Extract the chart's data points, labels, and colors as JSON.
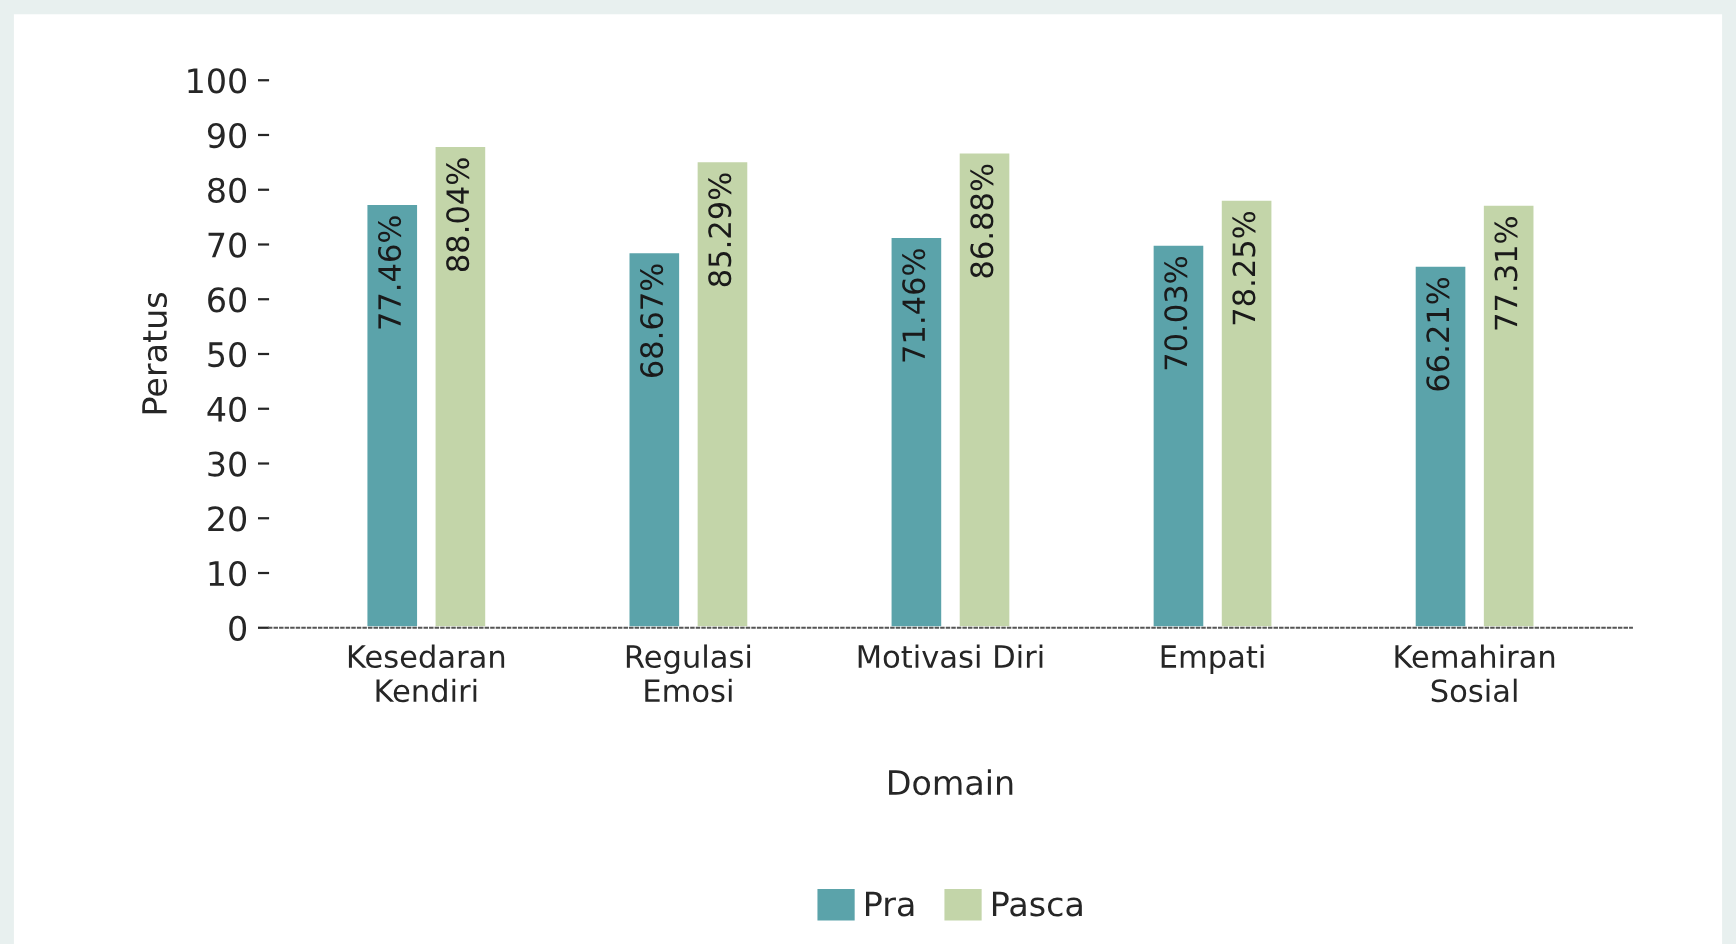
{
  "chart_data": {
    "type": "bar",
    "xlabel": "Domain",
    "ylabel": "Peratus",
    "categories": [
      "Kesedaran\nKendiri",
      "Regulasi\nEmosi",
      "Motivasi Diri",
      "Empati",
      "Kemahiran\nSosial"
    ],
    "series": [
      {
        "name": "Pra",
        "color": "#5ba3aa",
        "values": [
          77.46,
          68.67,
          71.46,
          70.03,
          66.21
        ],
        "value_labels": [
          "77.46%",
          "68.67%",
          "71.46%",
          "70.03%",
          "66.21%"
        ]
      },
      {
        "name": "Pasca",
        "color": "#c3d5a9",
        "values": [
          88.04,
          85.29,
          86.88,
          78.25,
          77.31
        ],
        "value_labels": [
          "88.04%",
          "85.29%",
          "86.88%",
          "78.25%",
          "77.31%"
        ]
      }
    ],
    "ylim": [
      0,
      100
    ],
    "yticks": [
      0,
      10,
      20,
      30,
      40,
      50,
      60,
      70,
      80,
      90,
      100
    ],
    "grid": false,
    "legend": "bottom"
  }
}
